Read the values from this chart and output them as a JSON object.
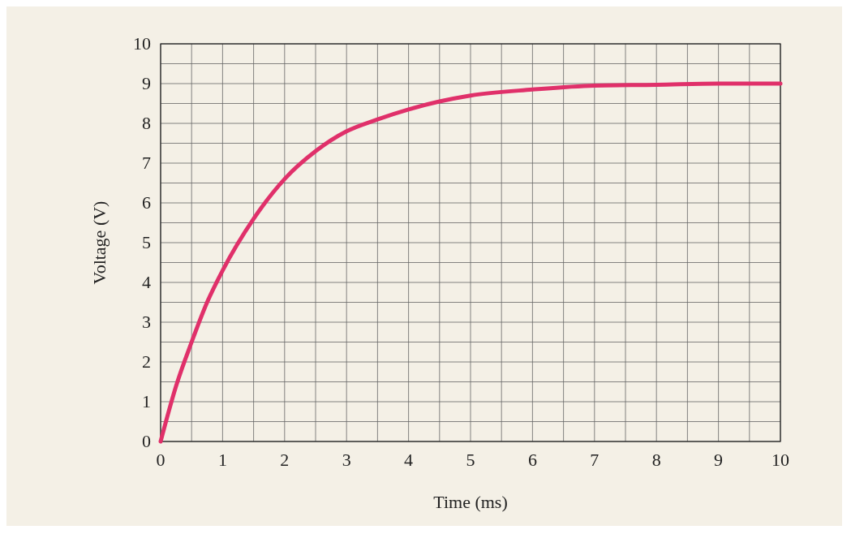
{
  "chart_data": {
    "type": "line",
    "xlabel": "Time (ms)",
    "ylabel": "Voltage (V)",
    "x": [
      0,
      0.25,
      0.5,
      0.75,
      1,
      1.5,
      2,
      2.5,
      3,
      3.5,
      4,
      4.5,
      5,
      6,
      7,
      8,
      9,
      10
    ],
    "series": [
      {
        "color": "#e0306a",
        "values": [
          0,
          1.4,
          2.5,
          3.5,
          4.3,
          5.6,
          6.6,
          7.3,
          7.8,
          8.1,
          8.35,
          8.55,
          8.7,
          8.85,
          8.95,
          8.97,
          9,
          9
        ]
      }
    ],
    "xlim": [
      0,
      10
    ],
    "ylim": [
      0,
      10
    ],
    "xticks": [
      0,
      {
        "value": 0.5,
        "label": null
      },
      1,
      {
        "value": 1.5,
        "label": null
      },
      2,
      {
        "value": 2.5,
        "label": null
      },
      3,
      {
        "value": 3.5,
        "label": null
      },
      4,
      {
        "value": 4.5,
        "label": null
      },
      5,
      {
        "value": 5.5,
        "label": null
      },
      6,
      {
        "value": 6.5,
        "label": null
      },
      7,
      {
        "value": 7.5,
        "label": null
      },
      8,
      {
        "value": 8.5,
        "label": null
      },
      9,
      {
        "value": 9.5,
        "label": null
      },
      10
    ],
    "yticks": [
      0,
      {
        "value": 0.5,
        "label": null
      },
      1,
      {
        "value": 1.5,
        "label": null
      },
      2,
      {
        "value": 2.5,
        "label": null
      },
      3,
      {
        "value": 3.5,
        "label": null
      },
      4,
      {
        "value": 4.5,
        "label": null
      },
      5,
      {
        "value": 5.5,
        "label": null
      },
      6,
      {
        "value": 6.5,
        "label": null
      },
      7,
      {
        "value": 7.5,
        "label": null
      },
      8,
      {
        "value": 8.5,
        "label": null
      },
      9,
      {
        "value": 9.5,
        "label": null
      },
      10
    ],
    "grid": true,
    "marker": "none",
    "line_style": "solid"
  }
}
